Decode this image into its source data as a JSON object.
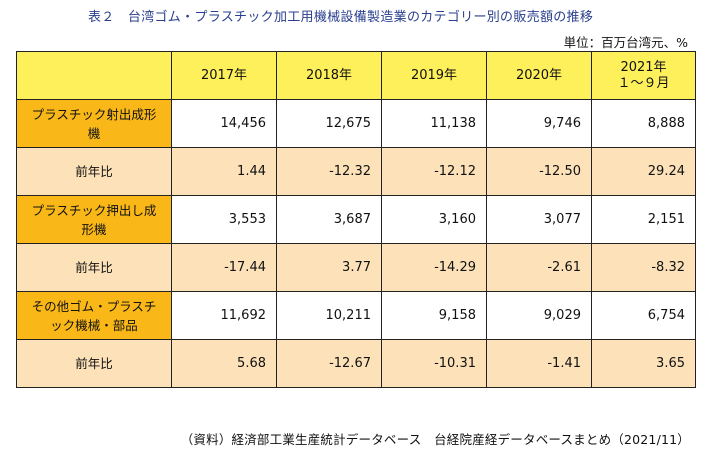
{
  "title": "表２　台湾ゴム・プラスチック加工用機械設備製造業のカテゴリー別の販売額の推移",
  "unit": "単位：百万台湾元、%",
  "columns": [
    "2017年",
    "2018年",
    "2019年",
    "2020年",
    "2021年",
    "１〜９月"
  ],
  "rows": [
    {
      "label": [
        "プラスチック射出成形",
        "機"
      ],
      "values": [
        "14,456",
        "12,675",
        "11,138",
        "9,746",
        "8,888"
      ]
    },
    {
      "label": [
        "前年比"
      ],
      "values": [
        "1.44",
        "-12.32",
        "-12.12",
        "-12.50",
        "29.24"
      ]
    },
    {
      "label": [
        "プラスチック押出し成",
        "形機"
      ],
      "values": [
        "3,553",
        "3,687",
        "3,160",
        "3,077",
        "2,151"
      ]
    },
    {
      "label": [
        "前年比"
      ],
      "values": [
        "-17.44",
        "3.77",
        "-14.29",
        "-2.61",
        "-8.32"
      ]
    },
    {
      "label": [
        "その他ゴム・プラスチ",
        "ック機械・部品"
      ],
      "values": [
        "11,692",
        "10,211",
        "9,158",
        "9,029",
        "6,754"
      ]
    },
    {
      "label": [
        "前年比"
      ],
      "values": [
        "5.68",
        "-12.67",
        "-10.31",
        "-1.41",
        "3.65"
      ]
    }
  ],
  "source": "（資料）経済部工業生産統計データベース　台経院産経データベースまとめ（2021/11）",
  "colors": {
    "header_bg": "#fdf05a",
    "category_bg": "#f9b818",
    "yoy_bg": "#fde2b9",
    "title_color": "#2a3f8f"
  }
}
